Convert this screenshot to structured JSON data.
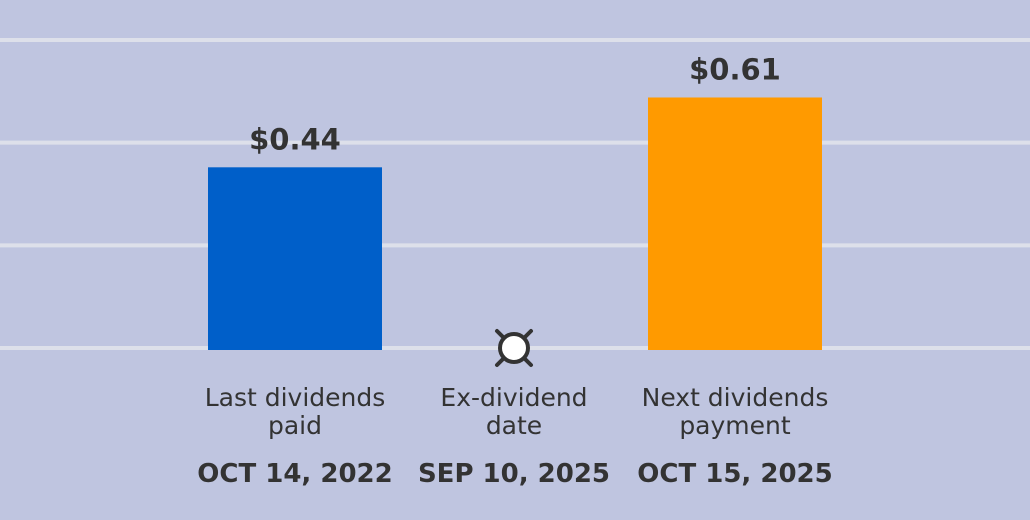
{
  "chart_data": {
    "type": "bar",
    "ylim": [
      0,
      0.75
    ],
    "gridlines": [
      0,
      0.25,
      0.5,
      0.75
    ],
    "grid": true,
    "items": [
      {
        "kind": "bar",
        "value": 0.44,
        "value_label": "$0.44",
        "label_lines": [
          "Last dividends",
          "paid"
        ],
        "date": "OCT 14, 2022",
        "color": "#005fc9"
      },
      {
        "kind": "marker",
        "label_lines": [
          "Ex-dividend",
          "date"
        ],
        "date": "SEP 10, 2025",
        "icon": "ex-dividend-marker-icon"
      },
      {
        "kind": "bar",
        "value": 0.61,
        "value_label": "$0.61",
        "label_lines": [
          "Next dividends",
          "payment"
        ],
        "date": "OCT 15, 2025",
        "color": "#ff9a00"
      }
    ]
  }
}
